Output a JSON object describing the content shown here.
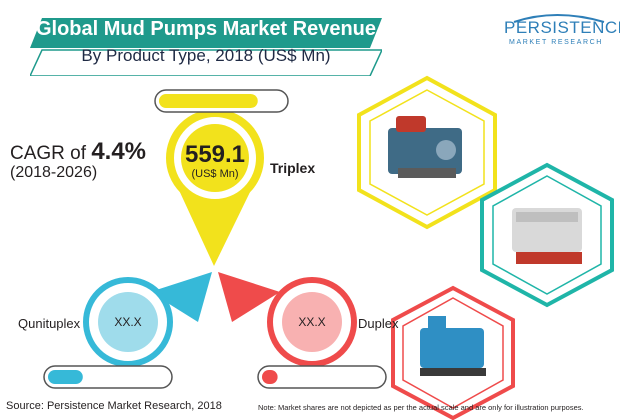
{
  "title": {
    "line1": "Global Mud Pumps Market Revenue",
    "line2": "By Product Type, 2018 (US$ Mn)"
  },
  "logo": {
    "word": "PERSISTENCE",
    "subtitle": "MARKET RESEARCH"
  },
  "cagr": {
    "prefix": "CAGR of ",
    "value": "4.4%",
    "period": "(2018-2026)"
  },
  "chart_data": {
    "type": "bar",
    "title": "Global Mud Pumps Market Revenue By Product Type, 2018 (US$ Mn)",
    "categories": [
      "Triplex",
      "Qunituplex",
      "Duplex"
    ],
    "values": [
      "559.1",
      "XX.X",
      "XX.X"
    ],
    "unit": "(US$ Mn)",
    "share_bars": [
      0.79,
      0.29,
      0.13
    ],
    "colors": {
      "Triplex": "#f2e21c",
      "Qunituplex": "#36b9d8",
      "Duplex": "#ef4b4b"
    }
  },
  "footer": {
    "source": "Source: Persistence Market Research, 2018",
    "note": "Note: Market shares are not depicted as per the actual scale and are only for illustration purposes."
  },
  "colors": {
    "banner_teal": "#1f9a8c",
    "banner_dark": "#1f2a44",
    "brand_blue": "#2e7fb8",
    "triplex_yellow": "#f2e21c",
    "quintuplex_blue": "#36b9d8",
    "duplex_red": "#ef4b4b",
    "hex_yellow_border": "#f2e21c",
    "hex_teal_border": "#1fb5a8",
    "hex_red_border": "#ef4b4b"
  },
  "images": {
    "product_photos": [
      "mud-pump-photo-1",
      "mud-pump-photo-2",
      "mud-pump-photo-3"
    ]
  }
}
